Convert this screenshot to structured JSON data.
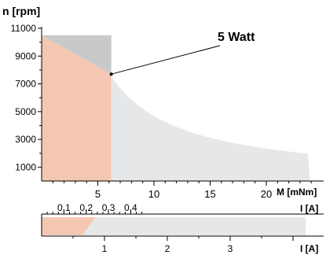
{
  "chart_data": {
    "type": "area",
    "ylabel": "n [rpm]",
    "y_axis": {
      "range": [
        0,
        11000
      ],
      "ticks": [
        1000,
        3000,
        5000,
        7000,
        9000,
        11000
      ],
      "tick_labels": [
        "1000",
        "3000",
        "5000",
        "7000",
        "9000",
        "11000"
      ]
    },
    "torque_axis": {
      "label": "M [mNm]",
      "range": [
        0,
        25
      ],
      "ticks": [
        5,
        10,
        15,
        20
      ],
      "tick_labels": [
        "5",
        "10",
        "15",
        "20"
      ]
    },
    "current_axis_top": {
      "label": "I [A]",
      "range": [
        0,
        0.48
      ],
      "ticks": [
        0.1,
        0.2,
        0.3,
        0.4
      ],
      "tick_labels": [
        "0,1",
        "0,2",
        "0,3",
        "0,4"
      ]
    },
    "current_axis_bottom": {
      "label": "I [A]",
      "range": [
        0,
        4.2
      ],
      "ticks": [
        1,
        2,
        3
      ],
      "tick_labels": [
        "1",
        "2",
        "3"
      ]
    },
    "annotation": {
      "text": "5 Watt",
      "torque": 6.2,
      "speed": 7700
    },
    "regions": [
      {
        "kind": "continuous_operation",
        "color": "#f4c7b2",
        "points": [
          [
            0,
            10500
          ],
          [
            6.2,
            7700
          ],
          [
            6.2,
            0
          ],
          [
            0,
            0
          ]
        ]
      },
      {
        "kind": "short_term_operation_upper",
        "color": "#c8c9cb",
        "points": [
          [
            0,
            10500
          ],
          [
            6.2,
            10500
          ],
          [
            6.2,
            7700
          ]
        ]
      },
      {
        "kind": "power_hyperbola_region",
        "color": "#e6e7e8",
        "torque_range": [
          6.2,
          23.9
        ],
        "max_speed": 10500,
        "power_watt": 5
      }
    ],
    "current_band": {
      "color_continuous": "#f4c7b2",
      "color_rest": "#e6e7e8",
      "continuous_to": 0.85,
      "continuous_to_low": 0.65,
      "max": 4.2
    },
    "grid": false
  }
}
